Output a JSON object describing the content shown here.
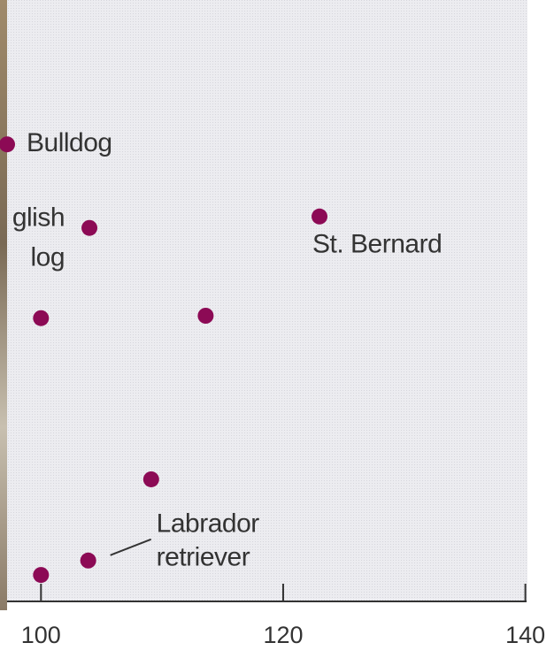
{
  "chart_data": {
    "type": "scatter",
    "x": [
      97.2,
      104.0,
      123.0,
      100.0,
      113.6,
      109.1,
      103.9,
      100.0
    ],
    "values": [
      76.0,
      62.1,
      64.0,
      47.1,
      47.5,
      20.3,
      6.8,
      4.4
    ],
    "labels": [
      [
        "Bulldog"
      ],
      [
        "glish",
        "log"
      ],
      [
        "St. Bernard"
      ],
      null,
      null,
      null,
      [
        "Labrador",
        "retriever"
      ],
      null
    ],
    "color": "#8c0a55",
    "xlim": [
      97.2,
      140.1
    ],
    "xticks": [
      100,
      120,
      140
    ],
    "ylim": [
      0,
      100
    ]
  }
}
